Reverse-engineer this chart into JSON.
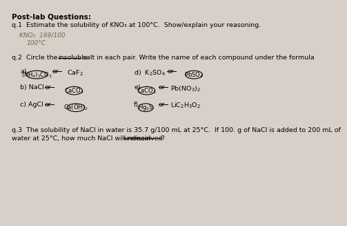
{
  "bg_color": "#d8d0c8",
  "title": "Post-lab Questions:",
  "q1_line1": "q.1  Estimate the solubility of KNO₃ at 100°C.  Show/explain your reasoning.",
  "q1_handwritten1": "KNO₃  169/100",
  "q1_handwritten2": "100°C",
  "q3_line1": "q.3  The solubility of NaCl in water is 35.7 g/100 mL at 25°C.  If 100. g of NaCl is added to 200 mL of",
  "q3_line2": "water at 25°C, how much NaCl will remain undissolved?"
}
